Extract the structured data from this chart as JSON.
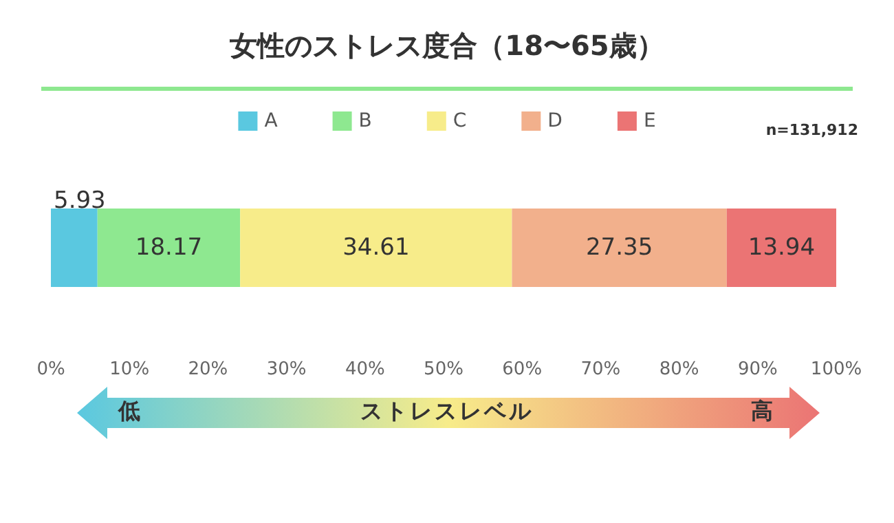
{
  "chart_data": {
    "type": "bar",
    "title": "女性のストレス度合（18〜65歳）",
    "orientation": "horizontal",
    "stacked": true,
    "categories": [
      null
    ],
    "series": [
      {
        "name": "A",
        "color": "#5ac8e0",
        "values": [
          5.93
        ]
      },
      {
        "name": "B",
        "color": "#8ee890",
        "values": [
          18.17
        ]
      },
      {
        "name": "C",
        "color": "#f7ec8a",
        "values": [
          34.61
        ]
      },
      {
        "name": "D",
        "color": "#f2b08c",
        "values": [
          27.35
        ]
      },
      {
        "name": "E",
        "color": "#eb7474",
        "values": [
          13.94
        ]
      }
    ],
    "xlim": [
      0,
      100
    ],
    "xticks": [
      {
        "value": 0,
        "label": "0%"
      },
      {
        "value": 10,
        "label": "10%"
      },
      {
        "value": 20,
        "label": "20%"
      },
      {
        "value": 30,
        "label": "30%"
      },
      {
        "value": 40,
        "label": "40%"
      },
      {
        "value": 50,
        "label": "50%"
      },
      {
        "value": 60,
        "label": "60%"
      },
      {
        "value": 70,
        "label": "70%"
      },
      {
        "value": 80,
        "label": "80%"
      },
      {
        "value": 90,
        "label": "90%"
      },
      {
        "value": 100,
        "label": "100%"
      }
    ],
    "data_labels": true,
    "legend": "top",
    "grid": false,
    "annotations": [
      "低",
      "ストレスレベル",
      "高",
      "n=131,912"
    ]
  }
}
